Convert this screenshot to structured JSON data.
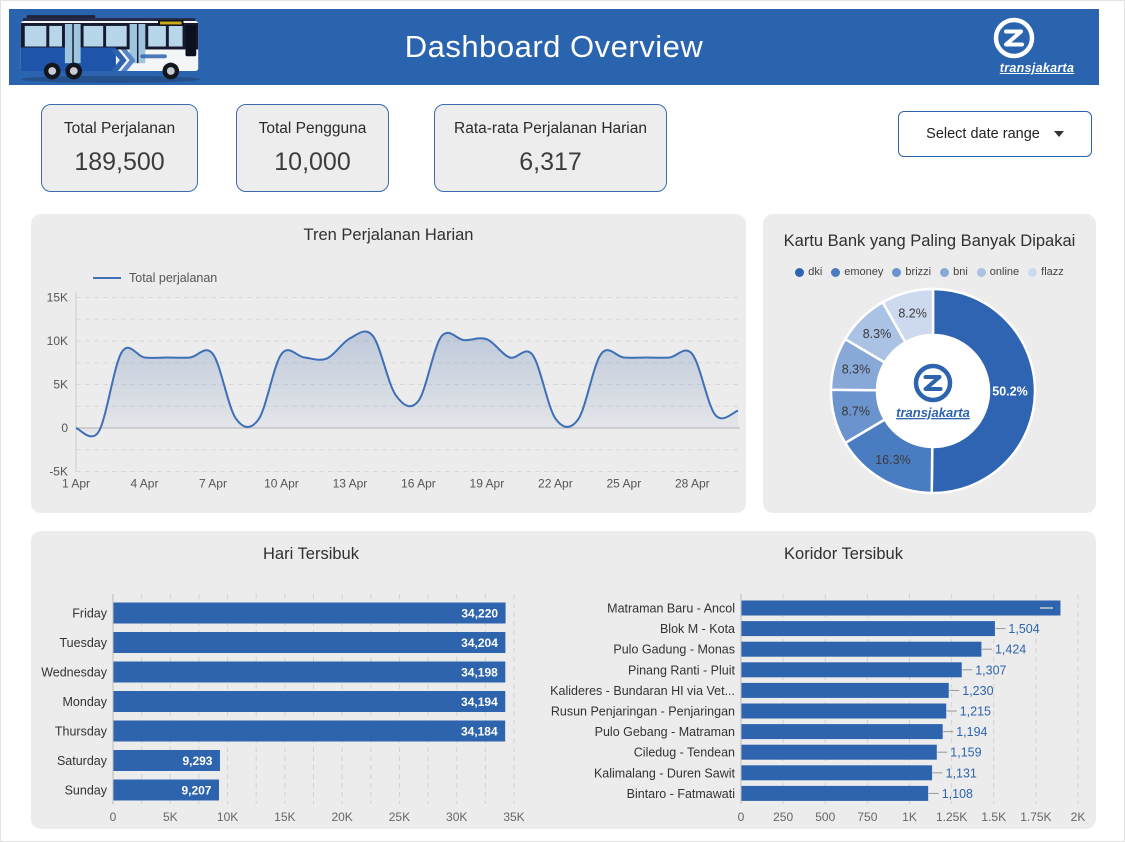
{
  "page_title": "Dashboard Overview",
  "brand": {
    "name": "transjakarta"
  },
  "colors": {
    "banner": "#2a63ae",
    "bar_blue": "#2d64ad",
    "line_blue": "#3e6fb7",
    "panel_bg": "#ececec",
    "value_label_blue": "#2e64ad",
    "donut_palette": [
      "#2e64b1",
      "#4a7cc1",
      "#6b93cd",
      "#88a8d7",
      "#aac2e4",
      "#cdd9ee"
    ]
  },
  "kpis": [
    {
      "label": "Total Perjalanan",
      "value": "189,500"
    },
    {
      "label": "Total Pengguna",
      "value": "10,000"
    },
    {
      "label": "Rata-rata Perjalanan Harian",
      "value": "6,317"
    }
  ],
  "date_filter": {
    "label": "Select date range"
  },
  "chart_data": [
    {
      "id": "trend",
      "type": "area",
      "title": "Tren Perjalanan Harian",
      "series": [
        {
          "name": "Total perjalanan"
        }
      ],
      "x_unit": "day of April",
      "days": [
        1,
        2,
        3,
        4,
        5,
        6,
        7,
        8,
        9,
        10,
        11,
        12,
        13,
        14,
        15,
        16,
        17,
        18,
        19,
        20,
        21,
        22,
        23,
        24,
        25,
        26,
        27,
        28,
        29,
        30
      ],
      "values": [
        0,
        -400,
        8700,
        8100,
        8100,
        8100,
        8500,
        1100,
        1000,
        8500,
        8100,
        8000,
        10300,
        10600,
        3800,
        3100,
        10500,
        10100,
        10200,
        8100,
        8400,
        1100,
        1000,
        8500,
        8100,
        8100,
        8100,
        8500,
        1500,
        2000
      ],
      "tick_days": [
        1,
        4,
        7,
        10,
        13,
        16,
        19,
        22,
        25,
        28
      ],
      "tick_labels": [
        "1 Apr",
        "4 Apr",
        "7 Apr",
        "10 Apr",
        "13 Apr",
        "16 Apr",
        "19 Apr",
        "22 Apr",
        "25 Apr",
        "28 Apr"
      ],
      "ylim": [
        -5000,
        15000
      ],
      "yticks": [
        {
          "v": -5000,
          "label": "-5K"
        },
        {
          "v": 0,
          "label": "0"
        },
        {
          "v": 5000,
          "label": "5K"
        },
        {
          "v": 10000,
          "label": "10K"
        },
        {
          "v": 15000,
          "label": "15K"
        }
      ],
      "grid": "dashed horizontal every 2.5K"
    },
    {
      "id": "bank-cards",
      "type": "donut",
      "title": "Kartu Bank yang Paling Banyak Dipakai",
      "labels": [
        "dki",
        "emoney",
        "brizzi",
        "bni",
        "online",
        "flazz"
      ],
      "values_pct": [
        50.2,
        16.3,
        8.7,
        8.3,
        8.3,
        8.2
      ],
      "slice_labels": [
        "50.2%",
        "16.3%",
        "8.7%",
        "8.3%",
        "8.3%",
        "8.2%"
      ],
      "center_logo": "transjakarta",
      "legend_position": "top"
    },
    {
      "id": "busiest-days",
      "type": "bar",
      "title": "Hari Tersibuk",
      "orientation": "horizontal",
      "categories": [
        "Friday",
        "Tuesday",
        "Wednesday",
        "Monday",
        "Thursday",
        "Saturday",
        "Sunday"
      ],
      "values": [
        34220,
        34204,
        34198,
        34194,
        34184,
        9293,
        9207
      ],
      "value_labels": [
        "34,220",
        "34,204",
        "34,198",
        "34,194",
        "34,184",
        "9,293",
        "9,207"
      ],
      "xlim": [
        0,
        35000
      ],
      "xticks": [
        {
          "v": 0,
          "label": "0"
        },
        {
          "v": 5000,
          "label": "5K"
        },
        {
          "v": 10000,
          "label": "10K"
        },
        {
          "v": 15000,
          "label": "15K"
        },
        {
          "v": 20000,
          "label": "20K"
        },
        {
          "v": 25000,
          "label": "25K"
        },
        {
          "v": 30000,
          "label": "30K"
        },
        {
          "v": 35000,
          "label": "35K"
        }
      ],
      "grid_step": 2500
    },
    {
      "id": "busiest-corridors",
      "type": "bar",
      "title": "Koridor Tersibuk",
      "orientation": "horizontal",
      "categories": [
        "Matraman Baru - Ancol",
        "Blok M - Kota",
        "Pulo Gadung - Monas",
        "Pinang Ranti - Pluit",
        "Kalideres - Bundaran HI via Vet...",
        "Rusun Penjaringan - Penjaringan",
        "Pulo Gebang - Matraman",
        "Ciledug - Tendean",
        "Kalimalang - Duren Sawit",
        "Bintaro - Fatmawati"
      ],
      "values": [
        1893,
        1504,
        1424,
        1307,
        1230,
        1215,
        1194,
        1159,
        1131,
        1108
      ],
      "value_labels": [
        "",
        "1,504",
        "1,424",
        "1,307",
        "1,230",
        "1,215",
        "1,194",
        "1,159",
        "1,131",
        "1,108"
      ],
      "xlim": [
        0,
        2000
      ],
      "xticks": [
        {
          "v": 0,
          "label": "0"
        },
        {
          "v": 250,
          "label": "250"
        },
        {
          "v": 500,
          "label": "500"
        },
        {
          "v": 750,
          "label": "750"
        },
        {
          "v": 1000,
          "label": "1K"
        },
        {
          "v": 1250,
          "label": "1.25K"
        },
        {
          "v": 1500,
          "label": "1.5K"
        },
        {
          "v": 1750,
          "label": "1.75K"
        },
        {
          "v": 2000,
          "label": "2K"
        }
      ],
      "grid_step": 250
    }
  ]
}
